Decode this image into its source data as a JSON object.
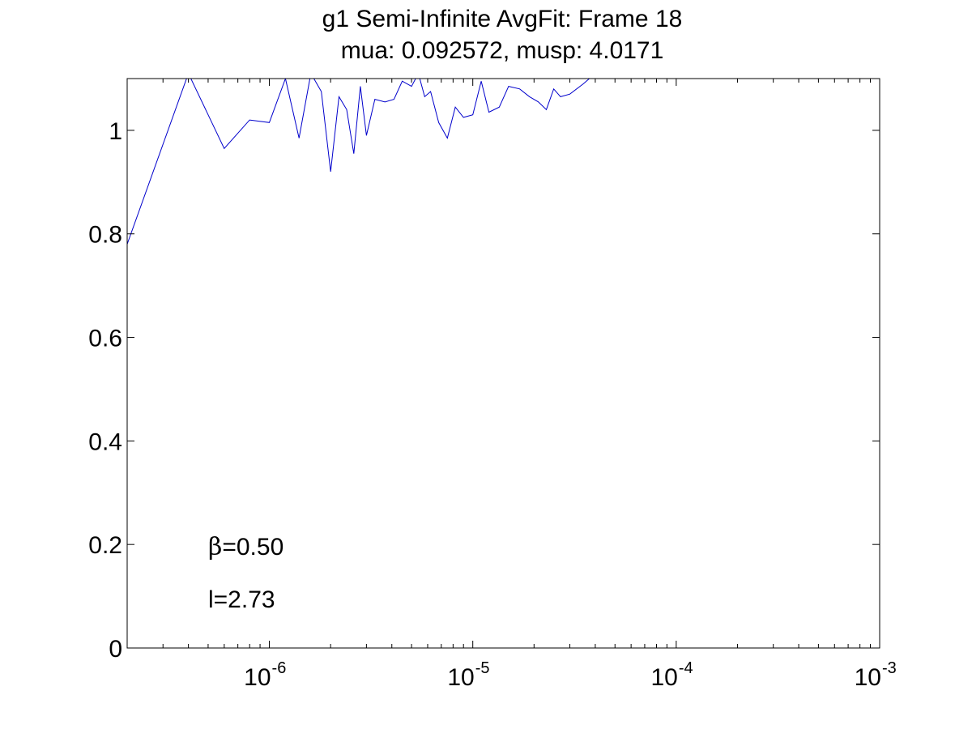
{
  "chart_data": {
    "type": "line",
    "title": "g1 Semi-Infinite AvgFit: Frame 18",
    "subtitle": "mua: 0.092572, musp: 4.0171",
    "xlabel": "",
    "ylabel": "",
    "xscale": "log",
    "xlim": [
      2e-07,
      0.001
    ],
    "ylim": [
      0,
      1.1
    ],
    "grid": false,
    "x_ticks": [
      {
        "base": "10",
        "exp": "-6",
        "value": 1e-06
      },
      {
        "base": "10",
        "exp": "-5",
        "value": 1e-05
      },
      {
        "base": "10",
        "exp": "-4",
        "value": 0.0001
      },
      {
        "base": "10",
        "exp": "-3",
        "value": 0.001
      }
    ],
    "y_ticks": [
      {
        "label": "0",
        "value": 0
      },
      {
        "label": "0.2",
        "value": 0.2
      },
      {
        "label": "0.4",
        "value": 0.4
      },
      {
        "label": "0.6",
        "value": 0.6
      },
      {
        "label": "0.8",
        "value": 0.8
      },
      {
        "label": "1",
        "value": 1
      }
    ],
    "series": [
      {
        "color": "#0000cc",
        "x": [
          2e-07,
          4e-07,
          6e-07,
          8e-07,
          1e-06,
          1.2e-06,
          1.4e-06,
          1.6e-06,
          1.8e-06,
          2e-06,
          2.2e-06,
          2.4e-06,
          2.6e-06,
          2.8e-06,
          3e-06,
          3.3e-06,
          3.7e-06,
          4.1e-06,
          4.5e-06,
          5e-06,
          5.4e-06,
          5.8e-06,
          6.2e-06,
          6.8e-06,
          7.5e-06,
          8.2e-06,
          9e-06,
          1e-05,
          1.1e-05,
          1.2e-05,
          1.35e-05,
          1.5e-05,
          1.7e-05,
          1.9e-05,
          2.1e-05,
          2.3e-05,
          2.5e-05,
          2.7e-05,
          3e-05,
          3.5e-05,
          4e-05
        ],
        "y": [
          0.78,
          1.11,
          0.965,
          1.02,
          1.015,
          1.1,
          0.985,
          1.11,
          1.075,
          0.92,
          1.065,
          1.04,
          0.955,
          1.085,
          0.99,
          1.06,
          1.055,
          1.06,
          1.095,
          1.085,
          1.11,
          1.065,
          1.075,
          1.015,
          0.985,
          1.045,
          1.025,
          1.03,
          1.095,
          1.035,
          1.045,
          1.085,
          1.08,
          1.065,
          1.055,
          1.04,
          1.08,
          1.065,
          1.07,
          1.09,
          1.11
        ]
      }
    ],
    "annotations": [
      {
        "greek": "β",
        "text": "=0.50"
      },
      {
        "text": "l=2.73"
      }
    ]
  }
}
